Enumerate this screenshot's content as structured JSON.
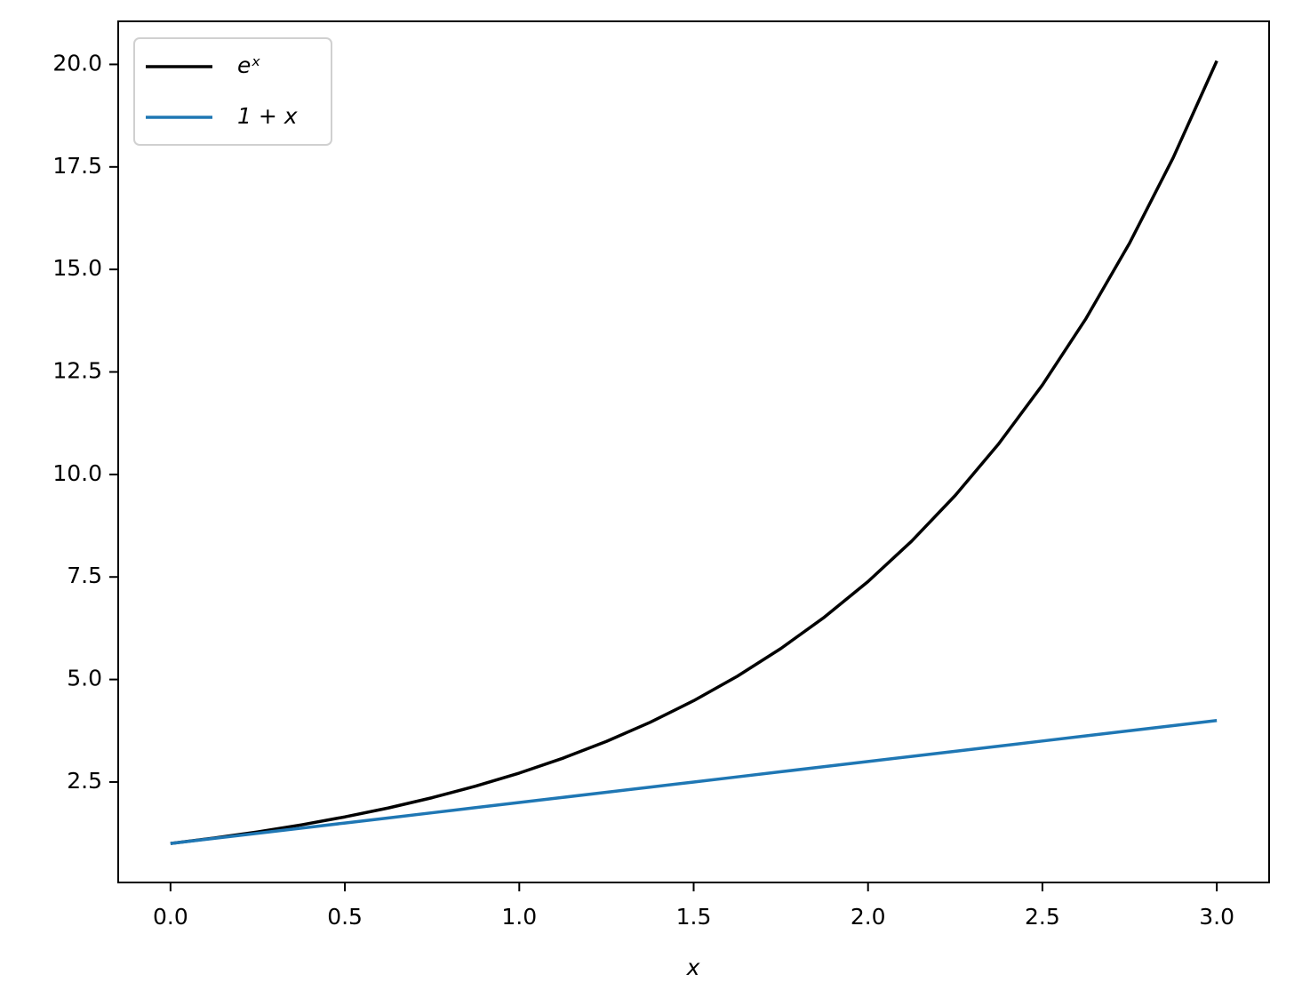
{
  "chart_data": {
    "type": "line",
    "xlabel": "x",
    "x": [
      0,
      0.125,
      0.25,
      0.375,
      0.5,
      0.625,
      0.75,
      0.875,
      1,
      1.125,
      1.25,
      1.375,
      1.5,
      1.625,
      1.75,
      1.875,
      2,
      2.125,
      2.25,
      2.375,
      2.5,
      2.625,
      2.75,
      2.875,
      3
    ],
    "series": [
      {
        "name": "eˣ",
        "color": "#000000",
        "values": [
          1,
          1.133,
          1.284,
          1.455,
          1.649,
          1.868,
          2.117,
          2.399,
          2.718,
          3.08,
          3.49,
          3.955,
          4.482,
          5.078,
          5.755,
          6.521,
          7.389,
          8.373,
          9.488,
          10.751,
          12.182,
          13.803,
          15.643,
          17.725,
          20.086
        ]
      },
      {
        "name": "1 + x",
        "color": "#1f77b4",
        "values": [
          1,
          1.125,
          1.25,
          1.375,
          1.5,
          1.625,
          1.75,
          1.875,
          2,
          2.125,
          2.25,
          2.375,
          2.5,
          2.625,
          2.75,
          2.875,
          3,
          3.125,
          3.25,
          3.375,
          3.5,
          3.625,
          3.75,
          3.875,
          4
        ]
      }
    ],
    "xlim": [
      -0.15,
      3.15
    ],
    "ylim": [
      0.05,
      21.05
    ],
    "xticks": [
      {
        "value": 0,
        "label": "0.0"
      },
      0.5,
      {
        "value": 1,
        "label": "1.0"
      },
      1.5,
      {
        "value": 2,
        "label": "2.0"
      },
      2.5,
      {
        "value": 3,
        "label": "3.0"
      }
    ],
    "yticks": [
      2.5,
      {
        "value": 5,
        "label": "5.0"
      },
      7.5,
      {
        "value": 10,
        "label": "10.0"
      },
      12.5,
      {
        "value": 15,
        "label": "15.0"
      },
      17.5,
      {
        "value": 20,
        "label": "20.0"
      }
    ],
    "grid": false,
    "legend": "upper left"
  }
}
